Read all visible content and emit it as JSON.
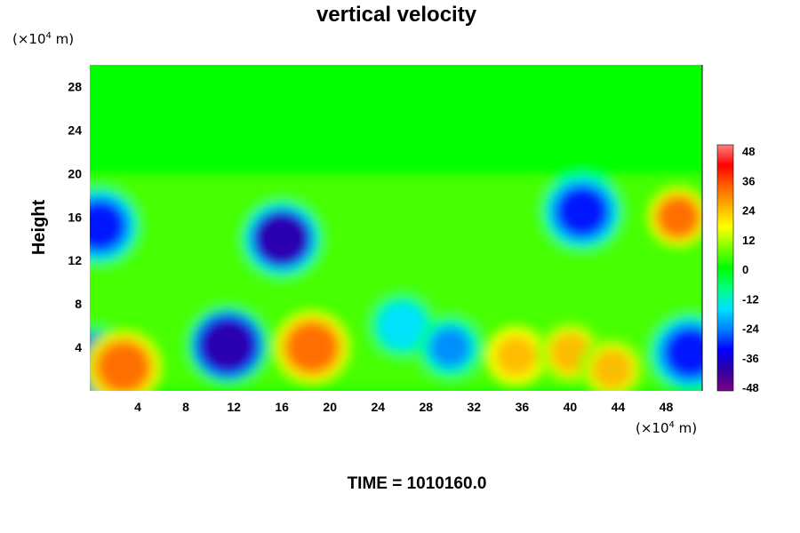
{
  "chart_data": {
    "type": "heatmap",
    "title": "vertical velocity",
    "ylabel": "Height",
    "xlabel": "",
    "x_unit": {
      "pre": "(×10",
      "exp": "4",
      "post": " m)"
    },
    "y_unit": {
      "pre": "(×10",
      "exp": "4",
      "post": " m)"
    },
    "xlim": [
      0,
      51
    ],
    "ylim": [
      0,
      30
    ],
    "x_ticks": [
      "4",
      "8",
      "12",
      "16",
      "20",
      "24",
      "28",
      "32",
      "36",
      "40",
      "44",
      "48"
    ],
    "y_ticks": [
      "4",
      "8",
      "12",
      "16",
      "20",
      "24",
      "28"
    ],
    "colorbar": {
      "ticks": [
        "48",
        "36",
        "24",
        "12",
        "0",
        "-12",
        "-24",
        "-36",
        "-48"
      ],
      "range": [
        -48,
        48
      ],
      "palette": [
        "#800080",
        "#3000a0",
        "#0000ff",
        "#0080ff",
        "#00e0ff",
        "#00ff80",
        "#00ff00",
        "#80ff00",
        "#ffff00",
        "#ffb000",
        "#ff6000",
        "#ff0000",
        "#ff8080"
      ]
    },
    "features": [
      {
        "x": 0.8,
        "y": 2.3,
        "value": -44
      },
      {
        "x": 2.8,
        "y": 2.2,
        "value": 34
      },
      {
        "x": 11.5,
        "y": 4.2,
        "value": -42
      },
      {
        "x": 18.5,
        "y": 4.0,
        "value": 32
      },
      {
        "x": 35.5,
        "y": 3.2,
        "value": 26
      },
      {
        "x": 40.0,
        "y": 3.5,
        "value": 20
      },
      {
        "x": 43.5,
        "y": 2.0,
        "value": 22
      },
      {
        "x": 50.0,
        "y": 3.5,
        "value": -32
      },
      {
        "x": 0.8,
        "y": 15.2,
        "value": -36
      },
      {
        "x": 16.0,
        "y": 14.0,
        "value": -40
      },
      {
        "x": 41.0,
        "y": 16.5,
        "value": -32
      },
      {
        "x": 49.0,
        "y": 16.0,
        "value": 30
      },
      {
        "x": 26.0,
        "y": 6.0,
        "value": -18
      },
      {
        "x": 30.0,
        "y": 4.0,
        "value": -22
      }
    ],
    "footer": "TIME = 1010160.0"
  }
}
